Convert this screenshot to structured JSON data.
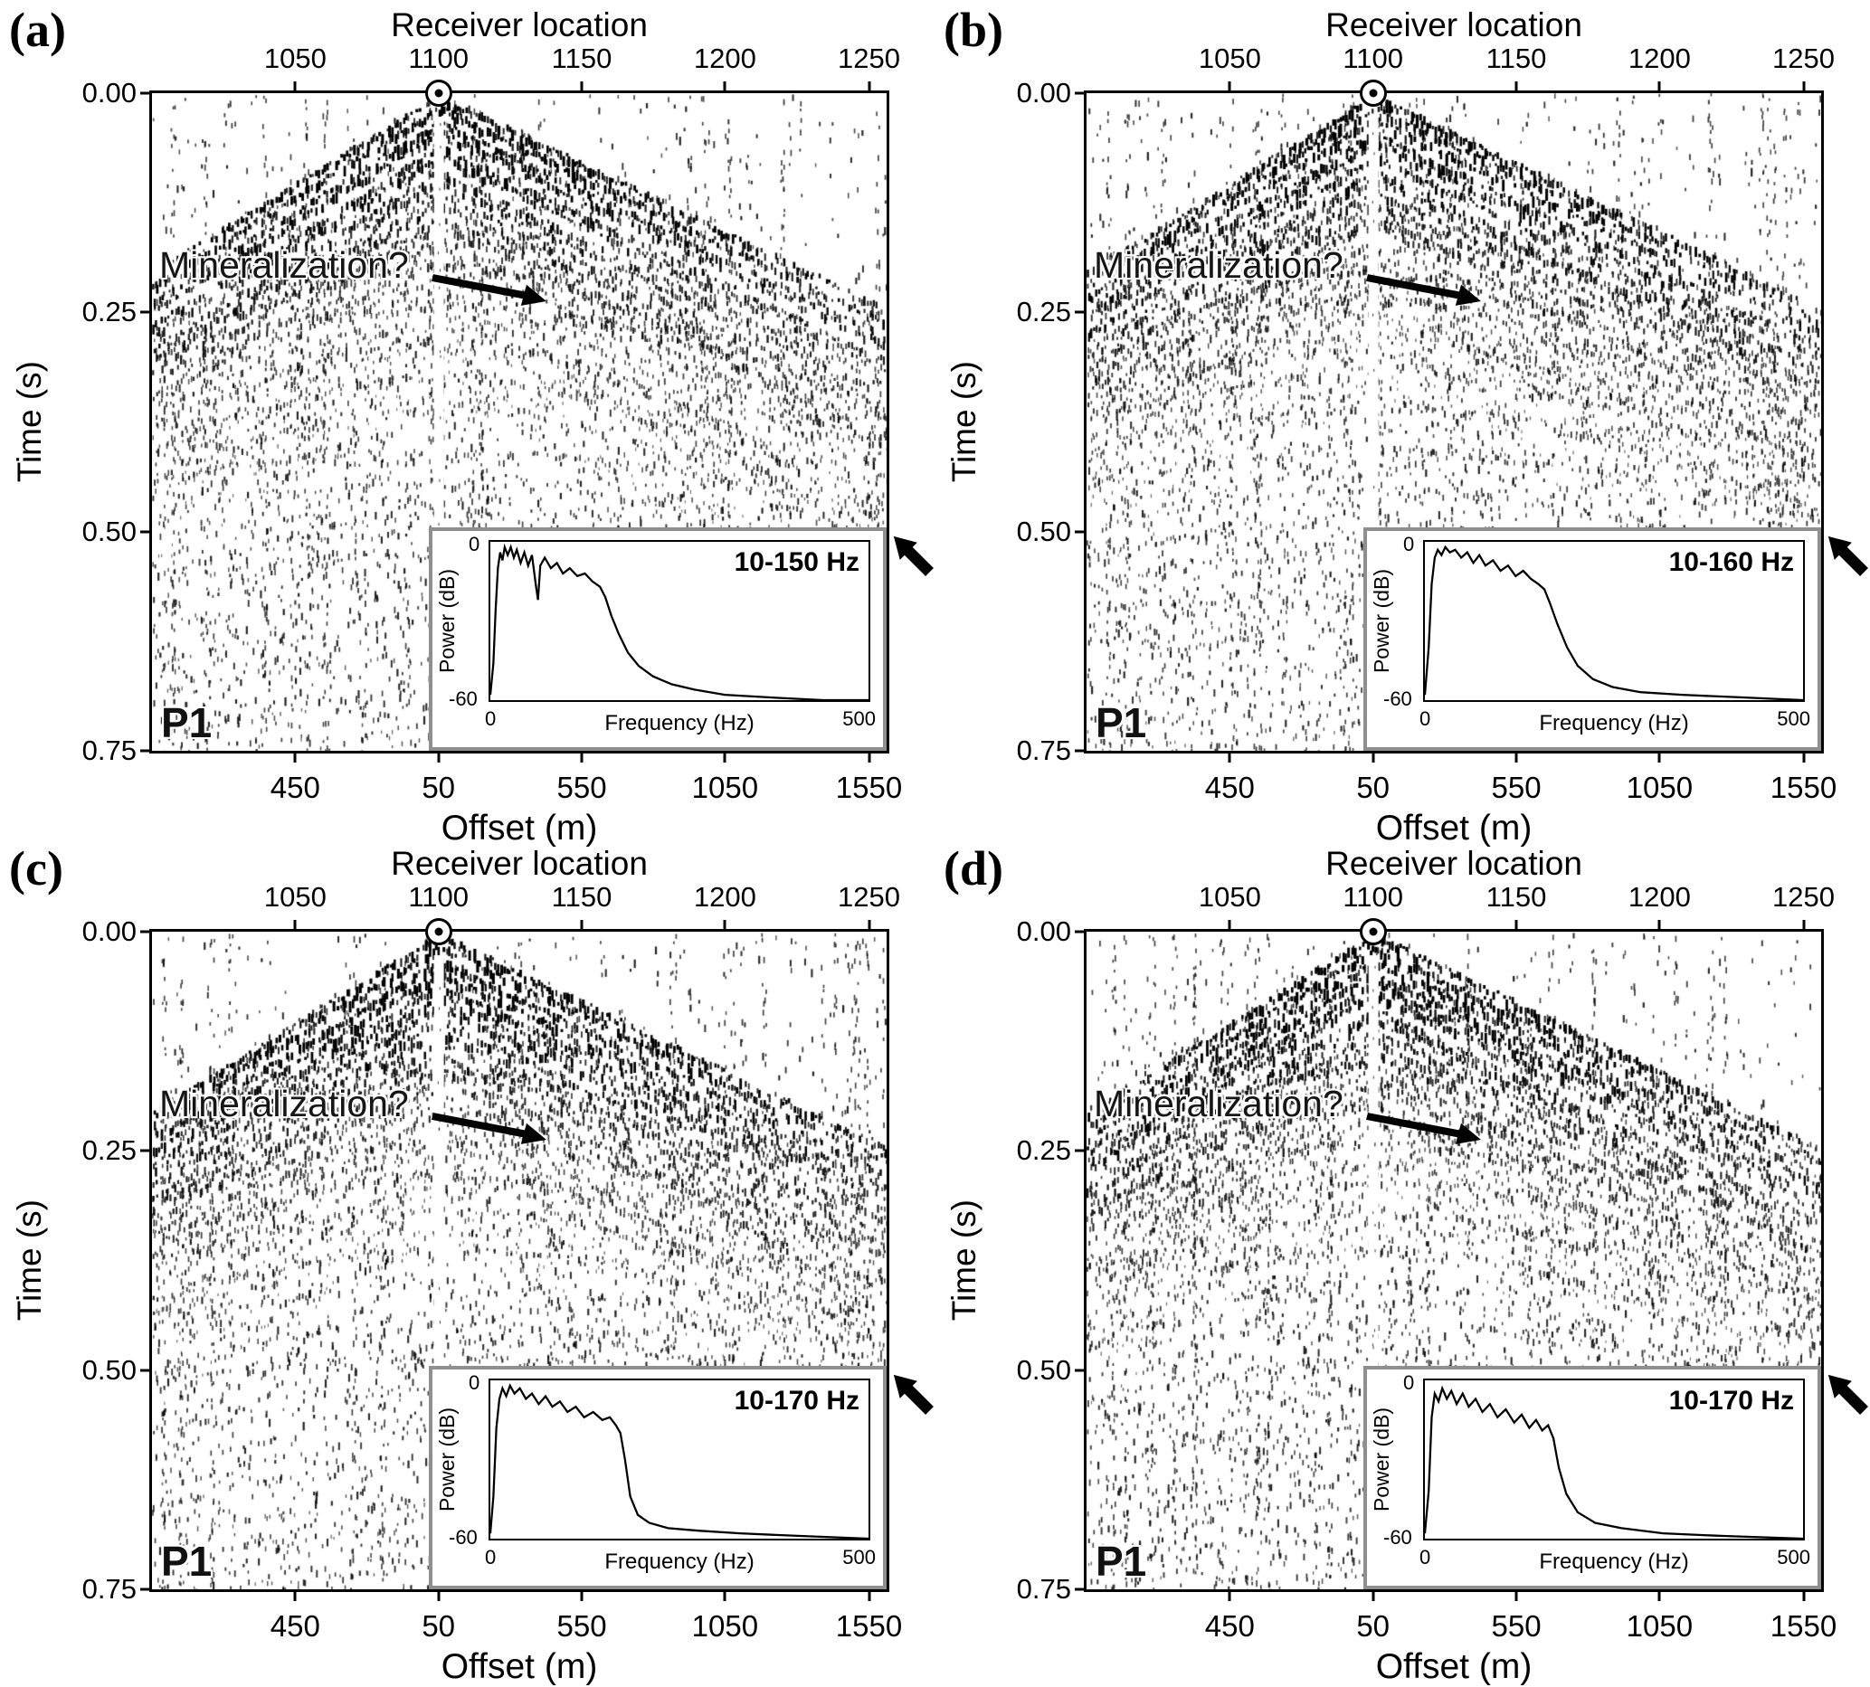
{
  "chart_data": [
    {
      "id": "a",
      "type": "seismic_shot_gather",
      "corner_label": "(a)",
      "panel_tag": "P1",
      "annotation": "Mineralization?",
      "source_receiver": 1100,
      "seed": 101,
      "x_top": {
        "label": "Receiver location",
        "tick_labels": [
          "1050",
          "1100",
          "1150",
          "1200",
          "1250"
        ],
        "tick_values": [
          1050,
          1100,
          1150,
          1200,
          1250
        ]
      },
      "x_bottom": {
        "label": "Offset (m)",
        "tick_labels": [
          "450",
          "50",
          "550",
          "1050",
          "1550"
        ],
        "tick_values": [
          450,
          50,
          550,
          1050,
          1550
        ]
      },
      "y_axis": {
        "label": "Time (s)",
        "tick_labels": [
          "0.00",
          "0.25",
          "0.50",
          "0.75"
        ],
        "range_s": [
          0,
          0.75
        ]
      },
      "inset": {
        "band_label": "10-150 Hz",
        "xlabel": "Frequency (Hz)",
        "ylabel": "Power (dB)",
        "x_tick_labels": [
          "0",
          "500"
        ],
        "y_tick_labels": [
          "0",
          "-60"
        ],
        "x_range_hz": [
          0,
          500
        ],
        "y_range_db": [
          0,
          -60
        ],
        "spectrum": [
          [
            0,
            -58
          ],
          [
            4,
            -46
          ],
          [
            7,
            -26
          ],
          [
            10,
            -10
          ],
          [
            13,
            -4
          ],
          [
            16,
            -7
          ],
          [
            19,
            -2
          ],
          [
            23,
            -5
          ],
          [
            27,
            -2
          ],
          [
            31,
            -6
          ],
          [
            35,
            -3
          ],
          [
            40,
            -8
          ],
          [
            45,
            -4
          ],
          [
            50,
            -9
          ],
          [
            55,
            -5
          ],
          [
            60,
            -16
          ],
          [
            63,
            -22
          ],
          [
            66,
            -9
          ],
          [
            72,
            -6
          ],
          [
            80,
            -10
          ],
          [
            88,
            -8
          ],
          [
            96,
            -12
          ],
          [
            105,
            -10
          ],
          [
            115,
            -13
          ],
          [
            125,
            -12
          ],
          [
            135,
            -15
          ],
          [
            145,
            -17
          ],
          [
            152,
            -21
          ],
          [
            160,
            -28
          ],
          [
            170,
            -35
          ],
          [
            182,
            -42
          ],
          [
            196,
            -47
          ],
          [
            215,
            -51
          ],
          [
            240,
            -54
          ],
          [
            270,
            -56
          ],
          [
            310,
            -58
          ],
          [
            370,
            -59
          ],
          [
            440,
            -60
          ],
          [
            500,
            -60
          ]
        ]
      }
    },
    {
      "id": "b",
      "type": "seismic_shot_gather",
      "corner_label": "(b)",
      "panel_tag": "P1",
      "annotation": "Mineralization?",
      "source_receiver": 1100,
      "seed": 202,
      "x_top": {
        "label": "Receiver location",
        "tick_labels": [
          "1050",
          "1100",
          "1150",
          "1200",
          "1250"
        ],
        "tick_values": [
          1050,
          1100,
          1150,
          1200,
          1250
        ]
      },
      "x_bottom": {
        "label": "Offset (m)",
        "tick_labels": [
          "450",
          "50",
          "550",
          "1050",
          "1550"
        ],
        "tick_values": [
          450,
          50,
          550,
          1050,
          1550
        ]
      },
      "y_axis": {
        "label": "Time (s)",
        "tick_labels": [
          "0.00",
          "0.25",
          "0.50",
          "0.75"
        ],
        "range_s": [
          0,
          0.75
        ]
      },
      "inset": {
        "band_label": "10-160 Hz",
        "xlabel": "Frequency (Hz)",
        "ylabel": "Power (dB)",
        "x_tick_labels": [
          "0",
          "500"
        ],
        "y_tick_labels": [
          "0",
          "-60"
        ],
        "x_range_hz": [
          0,
          500
        ],
        "y_range_db": [
          0,
          -60
        ],
        "spectrum": [
          [
            0,
            -58
          ],
          [
            5,
            -40
          ],
          [
            9,
            -16
          ],
          [
            13,
            -6
          ],
          [
            17,
            -3
          ],
          [
            22,
            -5
          ],
          [
            27,
            -2
          ],
          [
            33,
            -4
          ],
          [
            40,
            -3
          ],
          [
            48,
            -6
          ],
          [
            56,
            -4
          ],
          [
            64,
            -8
          ],
          [
            72,
            -5
          ],
          [
            80,
            -9
          ],
          [
            90,
            -7
          ],
          [
            100,
            -11
          ],
          [
            110,
            -9
          ],
          [
            120,
            -13
          ],
          [
            130,
            -11
          ],
          [
            140,
            -14
          ],
          [
            150,
            -16
          ],
          [
            158,
            -18
          ],
          [
            165,
            -23
          ],
          [
            175,
            -31
          ],
          [
            188,
            -40
          ],
          [
            202,
            -47
          ],
          [
            222,
            -52
          ],
          [
            248,
            -55
          ],
          [
            285,
            -57
          ],
          [
            340,
            -58
          ],
          [
            420,
            -59
          ],
          [
            500,
            -60
          ]
        ]
      }
    },
    {
      "id": "c",
      "type": "seismic_shot_gather",
      "corner_label": "(c)",
      "panel_tag": "P1",
      "annotation": "Mineralization?",
      "source_receiver": 1100,
      "seed": 303,
      "x_top": {
        "label": "Receiver location",
        "tick_labels": [
          "1050",
          "1100",
          "1150",
          "1200",
          "1250"
        ],
        "tick_values": [
          1050,
          1100,
          1150,
          1200,
          1250
        ]
      },
      "x_bottom": {
        "label": "Offset (m)",
        "tick_labels": [
          "450",
          "50",
          "550",
          "1050",
          "1550"
        ],
        "tick_values": [
          450,
          50,
          550,
          1050,
          1550
        ]
      },
      "y_axis": {
        "label": "Time (s)",
        "tick_labels": [
          "0.00",
          "0.25",
          "0.50",
          "0.75"
        ],
        "range_s": [
          0,
          0.75
        ]
      },
      "inset": {
        "band_label": "10-170 Hz",
        "xlabel": "Frequency (Hz)",
        "ylabel": "Power (dB)",
        "x_tick_labels": [
          "0",
          "500"
        ],
        "y_tick_labels": [
          "0",
          "-60"
        ],
        "x_range_hz": [
          0,
          500
        ],
        "y_range_db": [
          0,
          -60
        ],
        "spectrum": [
          [
            0,
            -58
          ],
          [
            4,
            -44
          ],
          [
            8,
            -18
          ],
          [
            12,
            -7
          ],
          [
            16,
            -3
          ],
          [
            21,
            -6
          ],
          [
            26,
            -2
          ],
          [
            32,
            -5
          ],
          [
            39,
            -3
          ],
          [
            47,
            -7
          ],
          [
            55,
            -5
          ],
          [
            64,
            -9
          ],
          [
            73,
            -6
          ],
          [
            82,
            -10
          ],
          [
            92,
            -8
          ],
          [
            102,
            -12
          ],
          [
            113,
            -10
          ],
          [
            124,
            -14
          ],
          [
            136,
            -12
          ],
          [
            148,
            -15
          ],
          [
            158,
            -14
          ],
          [
            166,
            -17
          ],
          [
            172,
            -20
          ],
          [
            178,
            -30
          ],
          [
            185,
            -44
          ],
          [
            195,
            -51
          ],
          [
            210,
            -54
          ],
          [
            235,
            -56
          ],
          [
            275,
            -57
          ],
          [
            330,
            -58
          ],
          [
            410,
            -59
          ],
          [
            500,
            -60
          ]
        ]
      }
    },
    {
      "id": "d",
      "type": "seismic_shot_gather",
      "corner_label": "(d)",
      "panel_tag": "P1",
      "annotation": "Mineralization?",
      "source_receiver": 1100,
      "seed": 404,
      "x_top": {
        "label": "Receiver location",
        "tick_labels": [
          "1050",
          "1100",
          "1150",
          "1200",
          "1250"
        ],
        "tick_values": [
          1050,
          1100,
          1150,
          1200,
          1250
        ]
      },
      "x_bottom": {
        "label": "Offset (m)",
        "tick_labels": [
          "450",
          "50",
          "550",
          "1050",
          "1550"
        ],
        "tick_values": [
          450,
          50,
          550,
          1050,
          1550
        ]
      },
      "y_axis": {
        "label": "Time (s)",
        "tick_labels": [
          "0.00",
          "0.25",
          "0.50",
          "0.75"
        ],
        "range_s": [
          0,
          0.75
        ]
      },
      "inset": {
        "band_label": "10-170 Hz",
        "xlabel": "Frequency (Hz)",
        "ylabel": "Power (dB)",
        "x_tick_labels": [
          "0",
          "500"
        ],
        "y_tick_labels": [
          "0",
          "-60"
        ],
        "x_range_hz": [
          0,
          500
        ],
        "y_range_db": [
          0,
          -60
        ],
        "spectrum": [
          [
            0,
            -58
          ],
          [
            5,
            -42
          ],
          [
            9,
            -14
          ],
          [
            13,
            -5
          ],
          [
            18,
            -8
          ],
          [
            23,
            -3
          ],
          [
            29,
            -7
          ],
          [
            35,
            -4
          ],
          [
            42,
            -9
          ],
          [
            50,
            -5
          ],
          [
            58,
            -10
          ],
          [
            67,
            -7
          ],
          [
            76,
            -12
          ],
          [
            86,
            -9
          ],
          [
            96,
            -14
          ],
          [
            107,
            -11
          ],
          [
            118,
            -16
          ],
          [
            128,
            -13
          ],
          [
            138,
            -18
          ],
          [
            147,
            -15
          ],
          [
            155,
            -19
          ],
          [
            163,
            -17
          ],
          [
            170,
            -22
          ],
          [
            177,
            -33
          ],
          [
            187,
            -43
          ],
          [
            202,
            -50
          ],
          [
            225,
            -54
          ],
          [
            260,
            -56
          ],
          [
            315,
            -58
          ],
          [
            395,
            -59
          ],
          [
            500,
            -60
          ]
        ]
      }
    }
  ]
}
